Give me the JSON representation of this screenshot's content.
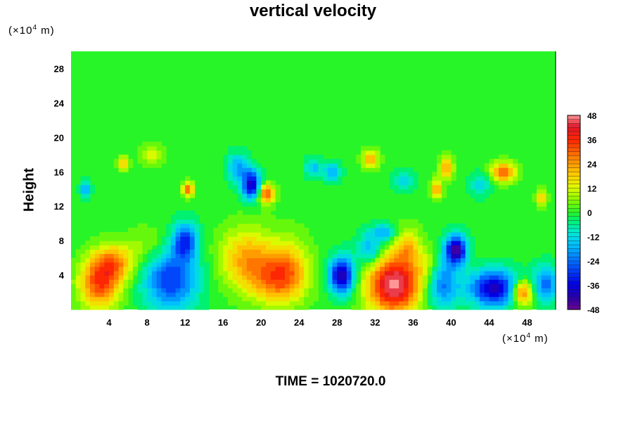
{
  "chart_data": {
    "type": "heatmap",
    "title": "vertical velocity",
    "ylabel": "Height",
    "xlabel": "",
    "y_unit": {
      "prefix": "(×10",
      "exp": "4",
      "suffix": " m)"
    },
    "x_unit": {
      "prefix": "(×10",
      "exp": "4",
      "suffix": " m)"
    },
    "footer": "TIME = 1020720.0",
    "xlim": [
      0,
      51
    ],
    "ylim": [
      0,
      30
    ],
    "x_ticks": [
      "4",
      "8",
      "12",
      "16",
      "20",
      "24",
      "28",
      "32",
      "36",
      "40",
      "44",
      "48"
    ],
    "y_ticks": [
      "4",
      "8",
      "12",
      "16",
      "20",
      "24",
      "28"
    ],
    "x_tick_values": [
      4,
      8,
      12,
      16,
      20,
      24,
      28,
      32,
      36,
      40,
      44,
      48
    ],
    "y_tick_values": [
      4,
      8,
      12,
      16,
      20,
      24,
      28
    ],
    "colorbar": {
      "range": [
        -48,
        48
      ],
      "ticks": [
        "48",
        "36",
        "24",
        "12",
        "0",
        "-12",
        "-24",
        "-36",
        "-48"
      ],
      "tick_values": [
        48,
        36,
        24,
        12,
        0,
        -12,
        -24,
        -36,
        -48
      ]
    },
    "features": [
      {
        "x": 3.0,
        "y": 3.0,
        "sx": 1.5,
        "sy": 2.0,
        "v": 32
      },
      {
        "x": 4.5,
        "y": 5.5,
        "sx": 1.5,
        "sy": 1.5,
        "v": 24
      },
      {
        "x": 10.5,
        "y": 3.5,
        "sx": 2.0,
        "sy": 2.5,
        "v": -30
      },
      {
        "x": 12.0,
        "y": 8.0,
        "sx": 0.9,
        "sy": 1.5,
        "v": -30
      },
      {
        "x": 18.5,
        "y": 6.0,
        "sx": 2.0,
        "sy": 2.5,
        "v": 22
      },
      {
        "x": 21.5,
        "y": 3.5,
        "sx": 2.0,
        "sy": 2.0,
        "v": 22
      },
      {
        "x": 23.0,
        "y": 5.0,
        "sx": 1.5,
        "sy": 2.5,
        "v": 16
      },
      {
        "x": 28.5,
        "y": 4.0,
        "sx": 0.9,
        "sy": 1.5,
        "v": -44
      },
      {
        "x": 31.5,
        "y": 7.0,
        "sx": 1.0,
        "sy": 1.5,
        "v": -20
      },
      {
        "x": 34.0,
        "y": 3.0,
        "sx": 2.0,
        "sy": 2.5,
        "v": 48
      },
      {
        "x": 35.5,
        "y": 7.5,
        "sx": 0.8,
        "sy": 1.5,
        "v": 16
      },
      {
        "x": 39.0,
        "y": 3.0,
        "sx": 1.3,
        "sy": 2.0,
        "v": -24
      },
      {
        "x": 40.5,
        "y": 7.0,
        "sx": 0.8,
        "sy": 1.2,
        "v": -46
      },
      {
        "x": 44.5,
        "y": 2.5,
        "sx": 1.8,
        "sy": 1.5,
        "v": -40
      },
      {
        "x": 47.5,
        "y": 2.0,
        "sx": 0.8,
        "sy": 1.0,
        "v": 34
      },
      {
        "x": 50.0,
        "y": 3.0,
        "sx": 1.0,
        "sy": 1.5,
        "v": -24
      },
      {
        "x": 37.5,
        "y": 5.0,
        "sx": 0.8,
        "sy": 1.5,
        "v": 10
      },
      {
        "x": 8.0,
        "y": 7.5,
        "sx": 1.5,
        "sy": 1.5,
        "v": 8
      },
      {
        "x": 19.0,
        "y": 14.5,
        "sx": 0.7,
        "sy": 1.2,
        "v": -40
      },
      {
        "x": 20.5,
        "y": 13.5,
        "sx": 0.6,
        "sy": 0.8,
        "v": 34
      },
      {
        "x": 12.3,
        "y": 14.0,
        "sx": 0.4,
        "sy": 0.6,
        "v": 30
      },
      {
        "x": 45.5,
        "y": 16.0,
        "sx": 0.9,
        "sy": 0.8,
        "v": 30
      },
      {
        "x": 38.5,
        "y": 14.0,
        "sx": 0.4,
        "sy": 0.8,
        "v": 24
      },
      {
        "x": 39.5,
        "y": 16.5,
        "sx": 0.5,
        "sy": 0.8,
        "v": 26
      },
      {
        "x": 31.5,
        "y": 17.5,
        "sx": 0.6,
        "sy": 0.8,
        "v": 22
      },
      {
        "x": 27.5,
        "y": 16.0,
        "sx": 0.6,
        "sy": 0.8,
        "v": -20
      },
      {
        "x": 17.5,
        "y": 16.5,
        "sx": 0.8,
        "sy": 1.2,
        "v": -18
      },
      {
        "x": 1.5,
        "y": 14.0,
        "sx": 0.4,
        "sy": 0.8,
        "v": -18
      },
      {
        "x": 49.5,
        "y": 13.0,
        "sx": 0.4,
        "sy": 0.6,
        "v": 22
      },
      {
        "x": 5.5,
        "y": 17.0,
        "sx": 0.4,
        "sy": 0.6,
        "v": 20
      },
      {
        "x": 8.5,
        "y": 18.0,
        "sx": 0.8,
        "sy": 0.8,
        "v": 12
      },
      {
        "x": 25.5,
        "y": 16.5,
        "sx": 0.6,
        "sy": 0.8,
        "v": -16
      },
      {
        "x": 35.0,
        "y": 15.0,
        "sx": 0.8,
        "sy": 0.8,
        "v": -14
      },
      {
        "x": 43.0,
        "y": 14.5,
        "sx": 0.8,
        "sy": 1.0,
        "v": -12
      },
      {
        "x": 33.0,
        "y": 9.0,
        "sx": 0.8,
        "sy": 0.7,
        "v": -18
      }
    ]
  }
}
